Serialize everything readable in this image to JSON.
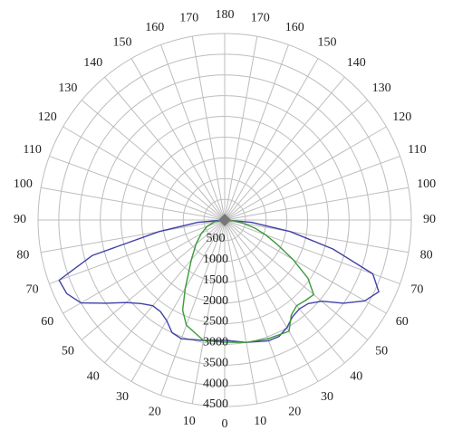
{
  "chart_data": {
    "type": "polar",
    "rlim": [
      0,
      4500
    ],
    "rticks": [
      500,
      1000,
      1500,
      2000,
      2500,
      3000,
      3500,
      4000,
      4500
    ],
    "thetaticks": [
      {
        "value": -170,
        "label": "170"
      },
      {
        "value": -160,
        "label": "160"
      },
      {
        "value": -150,
        "label": "150"
      },
      {
        "value": -140,
        "label": "140"
      },
      {
        "value": -130,
        "label": "130"
      },
      {
        "value": -120,
        "label": "120"
      },
      {
        "value": -110,
        "label": "110"
      },
      {
        "value": -100,
        "label": "100"
      },
      {
        "value": -90,
        "label": "90"
      },
      {
        "value": -80,
        "label": "80"
      },
      {
        "value": -70,
        "label": "70"
      },
      {
        "value": -60,
        "label": "60"
      },
      {
        "value": -50,
        "label": "50"
      },
      {
        "value": -40,
        "label": "40"
      },
      {
        "value": -30,
        "label": "30"
      },
      {
        "value": -20,
        "label": "20"
      },
      {
        "value": -10,
        "label": "10"
      },
      0,
      10,
      20,
      30,
      40,
      50,
      60,
      70,
      80,
      90,
      100,
      110,
      120,
      130,
      140,
      150,
      160,
      170,
      180
    ],
    "grid": true,
    "series": [
      {
        "color": "#4040a8",
        "theta": [
          -90,
          -85,
          -80,
          -75,
          -70,
          -65,
          -60,
          -55,
          -50,
          -45,
          -40,
          -35,
          -30,
          -25,
          -20,
          -10,
          0,
          10,
          20,
          25,
          30,
          35,
          40,
          45,
          50,
          55,
          60,
          65,
          70,
          75,
          80,
          85,
          90
        ],
        "values": [
          0,
          650,
          1600,
          3300,
          4250,
          4200,
          4000,
          3500,
          3100,
          2850,
          2700,
          2700,
          2800,
          3000,
          3050,
          2950,
          2900,
          3000,
          3100,
          3100,
          3000,
          2850,
          2800,
          2850,
          3050,
          3500,
          3900,
          4100,
          3800,
          2700,
          1600,
          650,
          0
        ]
      },
      {
        "color": "#3a9a3a",
        "theta": [
          -90,
          -80,
          -70,
          -60,
          -50,
          -40,
          -35,
          -30,
          -25,
          -20,
          -10,
          0,
          10,
          20,
          30,
          35,
          40,
          45,
          50,
          55,
          60,
          65,
          70,
          75,
          80,
          85,
          90
        ],
        "values": [
          0,
          250,
          450,
          650,
          900,
          1250,
          1500,
          1900,
          2400,
          2700,
          2950,
          2950,
          3000,
          3050,
          3100,
          2800,
          2700,
          2750,
          2800,
          2450,
          1900,
          1400,
          1050,
          750,
          450,
          200,
          0
        ]
      }
    ]
  }
}
